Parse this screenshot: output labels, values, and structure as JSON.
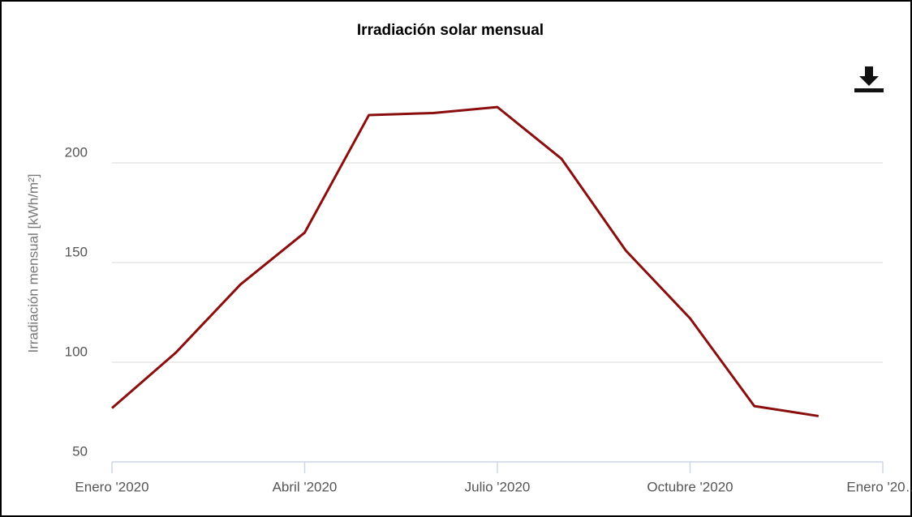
{
  "chart_data": {
    "type": "line",
    "title": "Irradiación solar mensual",
    "y_label": "Irradiación mensual [kWh/m²]",
    "x": [
      "2020-01",
      "2020-02",
      "2020-03",
      "2020-04",
      "2020-05",
      "2020-06",
      "2020-07",
      "2020-08",
      "2020-09",
      "2020-10",
      "2020-11",
      "2020-12"
    ],
    "series": [
      {
        "name": "Irradiación mensual",
        "color": "#8b0e0e",
        "values": [
          77,
          105,
          139,
          165,
          224,
          225,
          228,
          202,
          156,
          122,
          78,
          73
        ]
      }
    ],
    "xlim": [
      "2020-01",
      "2021-01"
    ],
    "xticks": [
      {
        "value": "2020-01",
        "label": "Enero '2020"
      },
      {
        "value": "2020-04",
        "label": "Abril '2020"
      },
      {
        "value": "2020-07",
        "label": "Julio '2020"
      },
      {
        "value": "2020-10",
        "label": "Octubre '2020"
      },
      {
        "value": "2021-01",
        "label": "Enero '20…"
      }
    ],
    "ylim": [
      50,
      250
    ],
    "yticks": [
      50,
      100,
      150,
      200
    ],
    "grid": true
  }
}
